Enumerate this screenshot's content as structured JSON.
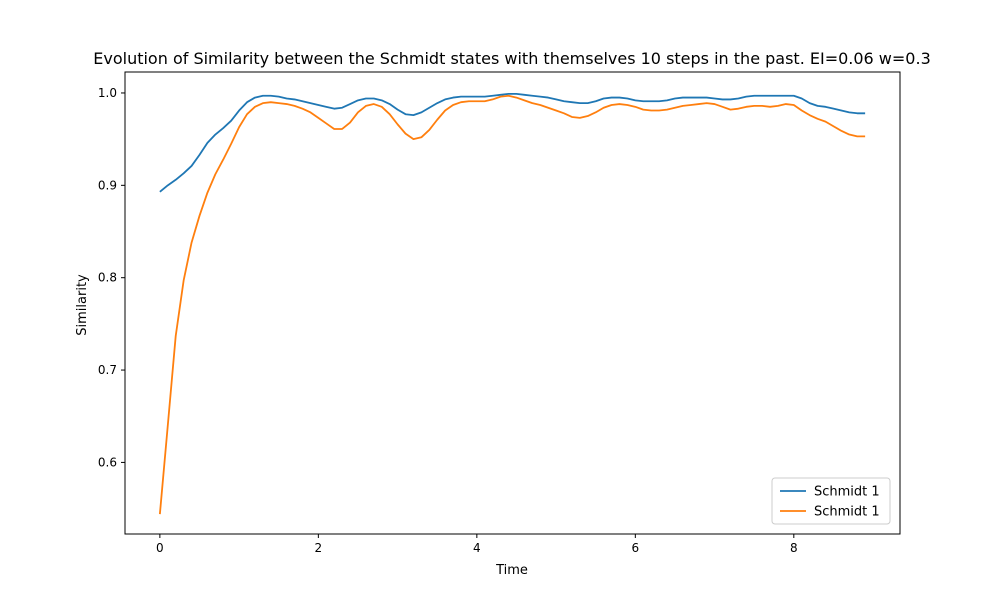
{
  "chart_data": {
    "type": "line",
    "title": "Evolution of Similarity between the Schmidt states with themselves 10 steps in the past. EI=0.06 w=0.3",
    "xlabel": "Time",
    "ylabel": "Similarity",
    "xlim": [
      -0.44,
      9.34
    ],
    "ylim": [
      0.5225,
      1.0227
    ],
    "xticks": [
      0,
      2,
      4,
      6,
      8
    ],
    "yticks": [
      0.6,
      0.7,
      0.8,
      0.9,
      1.0
    ],
    "xtick_labels": [
      "0",
      "2",
      "4",
      "6",
      "8"
    ],
    "ytick_labels": [
      "0.6",
      "0.7",
      "0.8",
      "0.9",
      "1.0"
    ],
    "grid": false,
    "legend_position": "lower-right",
    "series": [
      {
        "name": "Schmidt 1",
        "color": "#1f77b4",
        "x": [
          0.0,
          0.1,
          0.2,
          0.3,
          0.4,
          0.5,
          0.6,
          0.7,
          0.8,
          0.9,
          1.0,
          1.1,
          1.2,
          1.3,
          1.4,
          1.5,
          1.6,
          1.7,
          1.8,
          1.9,
          2.0,
          2.1,
          2.2,
          2.3,
          2.4,
          2.5,
          2.6,
          2.7,
          2.8,
          2.9,
          3.0,
          3.1,
          3.2,
          3.3,
          3.4,
          3.5,
          3.6,
          3.7,
          3.8,
          3.9,
          4.0,
          4.1,
          4.2,
          4.3,
          4.4,
          4.5,
          4.6,
          4.7,
          4.8,
          4.9,
          5.0,
          5.1,
          5.2,
          5.3,
          5.4,
          5.5,
          5.6,
          5.7,
          5.8,
          5.9,
          6.0,
          6.1,
          6.2,
          6.3,
          6.4,
          6.5,
          6.6,
          6.7,
          6.8,
          6.9,
          7.0,
          7.1,
          7.2,
          7.3,
          7.4,
          7.5,
          7.6,
          7.7,
          7.8,
          7.9,
          8.0,
          8.1,
          8.2,
          8.3,
          8.4,
          8.5,
          8.6,
          8.7,
          8.8,
          8.9
        ],
        "y": [
          0.893,
          0.9,
          0.906,
          0.913,
          0.921,
          0.933,
          0.946,
          0.955,
          0.962,
          0.97,
          0.981,
          0.99,
          0.995,
          0.997,
          0.997,
          0.996,
          0.994,
          0.993,
          0.991,
          0.989,
          0.987,
          0.985,
          0.983,
          0.984,
          0.988,
          0.992,
          0.994,
          0.994,
          0.992,
          0.988,
          0.982,
          0.977,
          0.976,
          0.979,
          0.984,
          0.989,
          0.993,
          0.995,
          0.996,
          0.996,
          0.996,
          0.996,
          0.997,
          0.998,
          0.999,
          0.999,
          0.998,
          0.997,
          0.996,
          0.995,
          0.993,
          0.991,
          0.99,
          0.989,
          0.989,
          0.991,
          0.994,
          0.995,
          0.995,
          0.994,
          0.992,
          0.991,
          0.991,
          0.991,
          0.992,
          0.994,
          0.995,
          0.995,
          0.995,
          0.995,
          0.994,
          0.993,
          0.993,
          0.994,
          0.996,
          0.997,
          0.997,
          0.997,
          0.997,
          0.997,
          0.997,
          0.994,
          0.989,
          0.986,
          0.985,
          0.983,
          0.981,
          0.979,
          0.978,
          0.978
        ]
      },
      {
        "name": "Schmidt 1",
        "color": "#ff7f0e",
        "x": [
          0.0,
          0.1,
          0.2,
          0.3,
          0.4,
          0.5,
          0.6,
          0.7,
          0.8,
          0.9,
          1.0,
          1.1,
          1.2,
          1.3,
          1.4,
          1.5,
          1.6,
          1.7,
          1.8,
          1.9,
          2.0,
          2.1,
          2.2,
          2.3,
          2.4,
          2.5,
          2.6,
          2.7,
          2.8,
          2.9,
          3.0,
          3.1,
          3.2,
          3.3,
          3.4,
          3.5,
          3.6,
          3.7,
          3.8,
          3.9,
          4.0,
          4.1,
          4.2,
          4.3,
          4.4,
          4.5,
          4.6,
          4.7,
          4.8,
          4.9,
          5.0,
          5.1,
          5.2,
          5.3,
          5.4,
          5.5,
          5.6,
          5.7,
          5.8,
          5.9,
          6.0,
          6.1,
          6.2,
          6.3,
          6.4,
          6.5,
          6.6,
          6.7,
          6.8,
          6.9,
          7.0,
          7.1,
          7.2,
          7.3,
          7.4,
          7.5,
          7.6,
          7.7,
          7.8,
          7.9,
          8.0,
          8.1,
          8.2,
          8.3,
          8.4,
          8.5,
          8.6,
          8.7,
          8.8,
          8.9
        ],
        "y": [
          0.544,
          0.64,
          0.737,
          0.797,
          0.838,
          0.867,
          0.892,
          0.912,
          0.928,
          0.945,
          0.963,
          0.977,
          0.985,
          0.989,
          0.99,
          0.989,
          0.988,
          0.986,
          0.983,
          0.979,
          0.973,
          0.967,
          0.961,
          0.961,
          0.968,
          0.979,
          0.986,
          0.988,
          0.985,
          0.977,
          0.966,
          0.956,
          0.95,
          0.952,
          0.96,
          0.971,
          0.981,
          0.987,
          0.99,
          0.991,
          0.991,
          0.991,
          0.993,
          0.996,
          0.997,
          0.995,
          0.992,
          0.989,
          0.987,
          0.984,
          0.981,
          0.978,
          0.974,
          0.973,
          0.975,
          0.979,
          0.984,
          0.987,
          0.988,
          0.987,
          0.985,
          0.982,
          0.981,
          0.981,
          0.982,
          0.984,
          0.986,
          0.987,
          0.988,
          0.989,
          0.988,
          0.985,
          0.982,
          0.983,
          0.985,
          0.986,
          0.986,
          0.985,
          0.986,
          0.988,
          0.987,
          0.981,
          0.976,
          0.972,
          0.969,
          0.964,
          0.959,
          0.955,
          0.953,
          0.953
        ]
      }
    ]
  }
}
